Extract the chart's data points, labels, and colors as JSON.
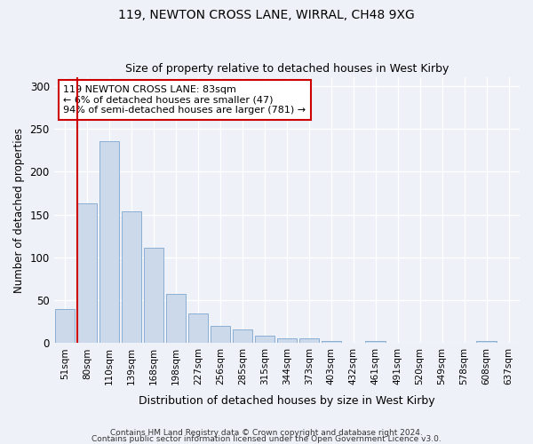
{
  "title1": "119, NEWTON CROSS LANE, WIRRAL, CH48 9XG",
  "title2": "Size of property relative to detached houses in West Kirby",
  "xlabel": "Distribution of detached houses by size in West Kirby",
  "ylabel": "Number of detached properties",
  "bar_color": "#ccd9ea",
  "bar_edge_color": "#8aafd4",
  "categories": [
    "51sqm",
    "80sqm",
    "110sqm",
    "139sqm",
    "168sqm",
    "198sqm",
    "227sqm",
    "256sqm",
    "285sqm",
    "315sqm",
    "344sqm",
    "373sqm",
    "403sqm",
    "432sqm",
    "461sqm",
    "491sqm",
    "520sqm",
    "549sqm",
    "578sqm",
    "608sqm",
    "637sqm"
  ],
  "values": [
    40,
    163,
    236,
    154,
    111,
    57,
    35,
    20,
    16,
    9,
    6,
    6,
    2,
    0,
    2,
    0,
    0,
    0,
    0,
    3,
    0
  ],
  "vline_color": "#cc0000",
  "annotation_text": "119 NEWTON CROSS LANE: 83sqm\n← 6% of detached houses are smaller (47)\n94% of semi-detached houses are larger (781) →",
  "annotation_box_color": "#ffffff",
  "annotation_box_edge_color": "#cc0000",
  "ylim": [
    0,
    310
  ],
  "yticks": [
    0,
    50,
    100,
    150,
    200,
    250,
    300
  ],
  "footer1": "Contains HM Land Registry data © Crown copyright and database right 2024.",
  "footer2": "Contains public sector information licensed under the Open Government Licence v3.0.",
  "background_color": "#eef2f8"
}
